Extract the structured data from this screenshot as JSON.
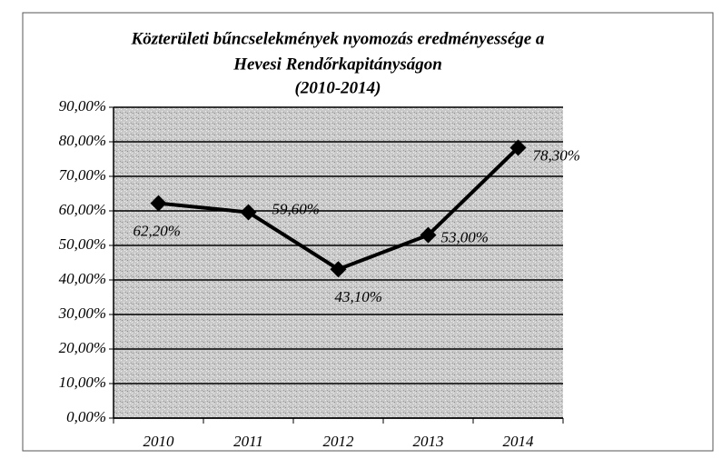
{
  "chart_data": {
    "type": "line",
    "title": [
      "Közterületi bűncselekmények nyomozás eredményessége a",
      "Hevesi Rendőrkapitányságon",
      "(2010-2014)"
    ],
    "categories": [
      "2010",
      "2011",
      "2012",
      "2013",
      "2014"
    ],
    "series": [
      {
        "color": "#000000",
        "values": [
          62.2,
          59.6,
          43.1,
          53.0,
          78.3
        ],
        "value_labels": [
          "62,20%",
          "59,60%",
          "43,10%",
          "53,00%",
          "78,30%"
        ]
      }
    ],
    "ylim": [
      0,
      90
    ],
    "yticks": [
      {
        "value": 0,
        "label": "0,00%"
      },
      {
        "value": 10,
        "label": "10,00%"
      },
      {
        "value": 20,
        "label": "20,00%"
      },
      {
        "value": 30,
        "label": "30,00%"
      },
      {
        "value": 40,
        "label": "40,00%"
      },
      {
        "value": 50,
        "label": "50,00%"
      },
      {
        "value": 60,
        "label": "60,00%"
      },
      {
        "value": 70,
        "label": "70,00%"
      },
      {
        "value": 80,
        "label": "80,00%"
      },
      {
        "value": 90,
        "label": "90,00%"
      }
    ],
    "grid": true
  }
}
